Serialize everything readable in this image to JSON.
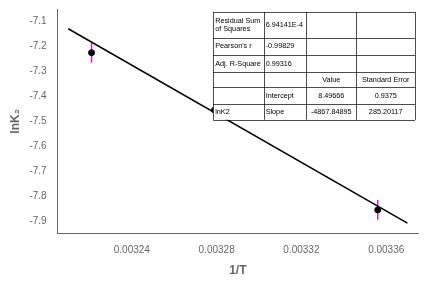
{
  "chart_data": {
    "type": "scatter",
    "x_label": "1/T",
    "y_label": "lnK₂",
    "xlim": [
      0.003205,
      0.003375
    ],
    "ylim": [
      -7.95,
      -7.05
    ],
    "xticks": [
      {
        "value": 0.00322,
        "label": null
      },
      0.00324,
      {
        "value": 0.00326,
        "label": null
      },
      0.00328,
      {
        "value": 0.0033,
        "label": null
      },
      0.00332,
      {
        "value": 0.00334,
        "label": null
      },
      0.00336
    ],
    "yticks": [
      -7.9,
      -7.8,
      -7.7,
      -7.6,
      -7.5,
      -7.4,
      -7.3,
      -7.2,
      -7.1
    ],
    "grid": false,
    "series": [
      {
        "type": "line",
        "color": "black",
        "line_style": "solid",
        "x": [
          0.00321,
          0.00337
        ],
        "values": [
          -7.1291351295,
          -7.9079909615
        ]
      },
      {
        "type": "scatter",
        "color": "black",
        "marker": "circle",
        "x": [
          0.003221,
          0.003279,
          0.003356
        ],
        "values": [
          -7.225,
          -7.455,
          -7.855
        ],
        "error_bars": {
          "color": "magenta",
          "values": [
            0.04,
            0.0,
            0.04
          ]
        }
      }
    ],
    "table": [
      [
        "Residual Sum\nof Squares",
        "6.94141E-4",
        null,
        null
      ],
      [
        "Pearson's r",
        "-0.99829",
        null,
        null
      ],
      [
        "Adj. R-Square",
        "0.99316",
        null,
        null
      ],
      [
        null,
        null,
        "Value",
        "Standard Error"
      ],
      [
        null,
        "Intercept",
        "8.49666",
        "0.9375"
      ],
      [
        "lnK2",
        "Slope",
        "-4867.84895",
        "285.20117"
      ]
    ]
  }
}
